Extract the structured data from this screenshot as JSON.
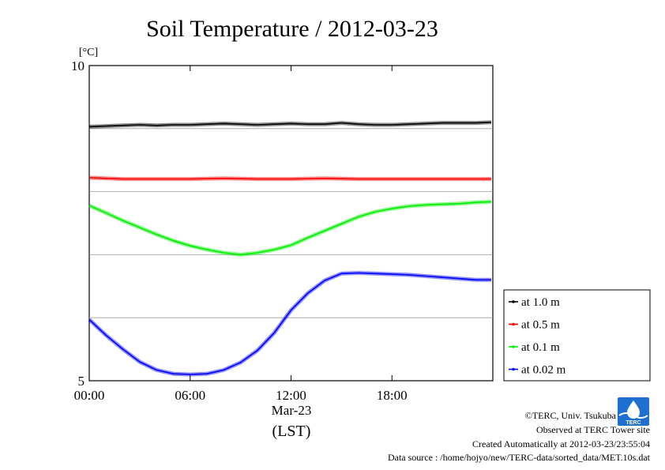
{
  "chart_data": {
    "type": "line",
    "title": "Soil Temperature / 2012-03-23",
    "ylabel_unit": "[°C]",
    "ylim": [
      5,
      10
    ],
    "xlim": [
      0,
      24
    ],
    "x_ticks": [
      {
        "value": 0,
        "label": "00:00"
      },
      {
        "value": 6,
        "label": "06:00"
      },
      {
        "value": 12,
        "label": "12:00"
      },
      {
        "value": 18,
        "label": "18:00"
      }
    ],
    "y_ticks": [
      {
        "value": 5,
        "label": "5"
      },
      {
        "value": 10,
        "label": "10"
      }
    ],
    "y_gridlines": [
      6,
      7,
      8,
      9
    ],
    "x_sublabel": "Mar-23",
    "x_axis_label": "(LST)",
    "grid": "horizontal",
    "legend_placement": "right",
    "series": [
      {
        "name": "at 1.0 m",
        "color": "#000000",
        "x": [
          0,
          1,
          2,
          3,
          4,
          5,
          6,
          7,
          8,
          9,
          10,
          11,
          12,
          13,
          14,
          15,
          16,
          17,
          18,
          19,
          20,
          21,
          22,
          23,
          23.9
        ],
        "y": [
          9.03,
          9.04,
          9.05,
          9.06,
          9.05,
          9.06,
          9.06,
          9.07,
          9.08,
          9.07,
          9.06,
          9.07,
          9.08,
          9.07,
          9.07,
          9.09,
          9.07,
          9.06,
          9.06,
          9.07,
          9.08,
          9.09,
          9.09,
          9.09,
          9.1
        ]
      },
      {
        "name": "at 0.5 m",
        "color": "#ff0000",
        "x": [
          0,
          2,
          4,
          6,
          8,
          10,
          12,
          14,
          16,
          18,
          20,
          22,
          23.9
        ],
        "y": [
          8.22,
          8.2,
          8.2,
          8.2,
          8.21,
          8.2,
          8.2,
          8.21,
          8.2,
          8.2,
          8.2,
          8.2,
          8.2
        ]
      },
      {
        "name": "at 0.1 m",
        "color": "#00ee00",
        "x": [
          0,
          1,
          2,
          3,
          4,
          5,
          6,
          7,
          8,
          9,
          10,
          11,
          12,
          13,
          14,
          15,
          16,
          17,
          18,
          19,
          20,
          21,
          22,
          23,
          23.9
        ],
        "y": [
          7.78,
          7.66,
          7.54,
          7.43,
          7.32,
          7.22,
          7.14,
          7.08,
          7.03,
          7.0,
          7.03,
          7.08,
          7.15,
          7.27,
          7.38,
          7.49,
          7.6,
          7.68,
          7.73,
          7.77,
          7.79,
          7.8,
          7.81,
          7.83,
          7.84
        ]
      },
      {
        "name": "at 0.02 m",
        "color": "#0000ff",
        "x": [
          0,
          1,
          2,
          3,
          4,
          5,
          6,
          7,
          8,
          9,
          10,
          11,
          12,
          13,
          14,
          15,
          16,
          17,
          18,
          19,
          20,
          21,
          22,
          23,
          23.9
        ],
        "y": [
          5.97,
          5.72,
          5.5,
          5.3,
          5.17,
          5.11,
          5.1,
          5.11,
          5.17,
          5.29,
          5.48,
          5.76,
          6.12,
          6.39,
          6.59,
          6.7,
          6.71,
          6.7,
          6.69,
          6.68,
          6.66,
          6.64,
          6.62,
          6.6,
          6.6
        ]
      }
    ]
  },
  "footer": {
    "credit": "©TERC, Univ. Tsukuba",
    "site": "Observed at TERC Tower site",
    "created": "Created Automatically at 2012-03-23/23:55:04",
    "source": "Data source : /home/hojyo/new/TERC-data/sorted_data/MET.10s.dat"
  },
  "logo": {
    "text": "TERC",
    "color": "#1e6fd0"
  }
}
